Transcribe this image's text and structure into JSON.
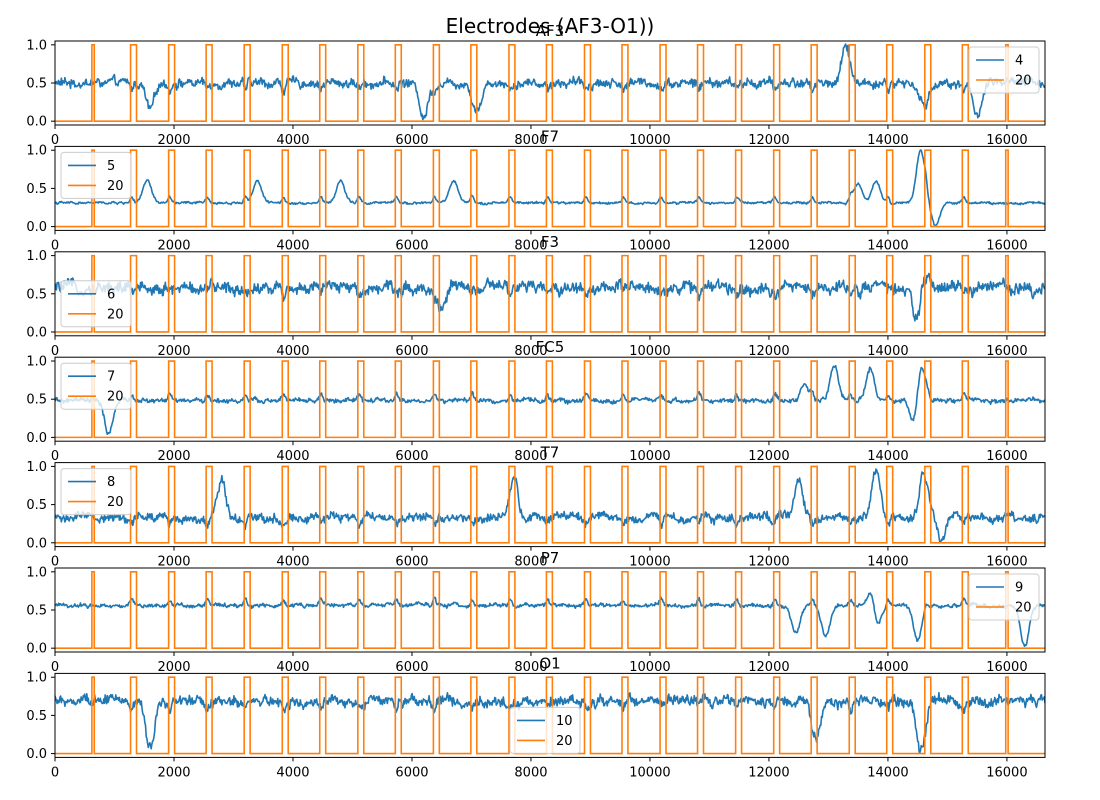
{
  "figure": {
    "suptitle": "Electrodes (AF3-O1))"
  },
  "colors": {
    "signal": "#1f77b4",
    "marker": "#ff7f0e"
  },
  "chart_data": [
    {
      "type": "line",
      "title": "AF3",
      "xlim": [
        0,
        16640
      ],
      "ylim": [
        -0.05,
        1.05
      ],
      "xticks": [
        0,
        2000,
        4000,
        6000,
        8000,
        10000,
        12000,
        14000,
        16000
      ],
      "yticks": [
        0.0,
        0.5,
        1.0
      ],
      "legend_loc": "upper-right",
      "series": [
        {
          "name": "4",
          "kind": "signal",
          "baseline": 0.5,
          "noise": 0.06,
          "spikes": [
            [
              1600,
              0.15
            ],
            [
              6200,
              0.05
            ],
            [
              7100,
              0.15
            ],
            [
              13300,
              1.0
            ],
            [
              14600,
              0.2
            ],
            [
              15500,
              0.05
            ]
          ]
        },
        {
          "name": "20",
          "kind": "marker"
        }
      ]
    },
    {
      "type": "line",
      "title": "F7",
      "xlim": [
        0,
        16640
      ],
      "ylim": [
        -0.05,
        1.05
      ],
      "xticks": [
        0,
        2000,
        4000,
        6000,
        8000,
        10000,
        12000,
        14000,
        16000
      ],
      "yticks": [
        0.0,
        0.5,
        1.0
      ],
      "legend_loc": "upper-left",
      "series": [
        {
          "name": "5",
          "kind": "signal",
          "baseline": 0.31,
          "noise": 0.015,
          "spikes": [
            [
              1550,
              0.6
            ],
            [
              3400,
              0.6
            ],
            [
              4800,
              0.6
            ],
            [
              6700,
              0.6
            ],
            [
              13500,
              0.55
            ],
            [
              13800,
              0.6
            ],
            [
              14550,
              1.0
            ],
            [
              14800,
              0.02
            ]
          ]
        },
        {
          "name": "20",
          "kind": "marker"
        }
      ]
    },
    {
      "type": "line",
      "title": "F3",
      "xlim": [
        0,
        16640
      ],
      "ylim": [
        -0.05,
        1.05
      ],
      "xticks": [
        0,
        2000,
        4000,
        6000,
        8000,
        10000,
        12000,
        14000,
        16000
      ],
      "yticks": [
        0.0,
        0.5,
        1.0
      ],
      "legend_loc": "center-left",
      "series": [
        {
          "name": "6",
          "kind": "signal",
          "baseline": 0.58,
          "noise": 0.08,
          "spikes": [
            [
              14500,
              0.02
            ],
            [
              14600,
              0.9
            ],
            [
              6500,
              0.3
            ]
          ]
        },
        {
          "name": "20",
          "kind": "marker"
        }
      ]
    },
    {
      "type": "line",
      "title": "FC5",
      "xlim": [
        0,
        16640
      ],
      "ylim": [
        -0.05,
        1.05
      ],
      "xticks": [
        0,
        2000,
        4000,
        6000,
        8000,
        10000,
        12000,
        14000,
        16000
      ],
      "yticks": [
        0.0,
        0.5,
        1.0
      ],
      "legend_loc": "upper-left",
      "series": [
        {
          "name": "7",
          "kind": "signal",
          "baseline": 0.48,
          "noise": 0.03,
          "spikes": [
            [
              900,
              0.05
            ],
            [
              12600,
              0.7
            ],
            [
              13100,
              0.95
            ],
            [
              13700,
              0.9
            ],
            [
              14550,
              1.0
            ],
            [
              14450,
              0.1
            ]
          ]
        },
        {
          "name": "20",
          "kind": "marker"
        }
      ]
    },
    {
      "type": "line",
      "title": "T7",
      "xlim": [
        0,
        16640
      ],
      "ylim": [
        -0.05,
        1.05
      ],
      "xticks": [
        0,
        2000,
        4000,
        6000,
        8000,
        10000,
        12000,
        14000,
        16000
      ],
      "yticks": [
        0.0,
        0.5,
        1.0
      ],
      "legend_loc": "upper-left",
      "series": [
        {
          "name": "8",
          "kind": "signal",
          "baseline": 0.33,
          "noise": 0.06,
          "spikes": [
            [
              2800,
              0.85
            ],
            [
              7700,
              0.9
            ],
            [
              12500,
              0.85
            ],
            [
              13800,
              0.95
            ],
            [
              14600,
              0.95
            ],
            [
              14900,
              0.02
            ]
          ]
        },
        {
          "name": "20",
          "kind": "marker"
        }
      ]
    },
    {
      "type": "line",
      "title": "P7",
      "xlim": [
        0,
        16640
      ],
      "ylim": [
        -0.05,
        1.05
      ],
      "xticks": [
        0,
        2000,
        4000,
        6000,
        8000,
        10000,
        12000,
        14000,
        16000
      ],
      "yticks": [
        0.0,
        0.5,
        1.0
      ],
      "legend_loc": "upper-right",
      "series": [
        {
          "name": "9",
          "kind": "signal",
          "baseline": 0.56,
          "noise": 0.025,
          "spikes": [
            [
              12450,
              0.2
            ],
            [
              12950,
              0.15
            ],
            [
              13750,
              1.0
            ],
            [
              13800,
              0.05
            ],
            [
              14500,
              0.1
            ],
            [
              16300,
              0.02
            ]
          ]
        },
        {
          "name": "20",
          "kind": "marker"
        }
      ]
    },
    {
      "type": "line",
      "title": "O1",
      "xlim": [
        0,
        16640
      ],
      "ylim": [
        -0.05,
        1.05
      ],
      "xticks": [
        0,
        2000,
        4000,
        6000,
        8000,
        10000,
        12000,
        14000,
        16000
      ],
      "yticks": [
        0.0,
        0.5,
        1.0
      ],
      "legend_loc": "lower-center",
      "series": [
        {
          "name": "10",
          "kind": "signal",
          "baseline": 0.68,
          "noise": 0.07,
          "spikes": [
            [
              1600,
              0.05
            ],
            [
              14550,
              0.02
            ],
            [
              12800,
              0.2
            ]
          ]
        },
        {
          "name": "20",
          "kind": "marker"
        }
      ]
    }
  ],
  "markers": {
    "thin_pulse_x": [
      640,
      16000
    ],
    "wide_pulses": [
      [
        1270,
        1370
      ],
      [
        1910,
        2010
      ],
      [
        2540,
        2640
      ],
      [
        3180,
        3280
      ],
      [
        3820,
        3920
      ],
      [
        4450,
        4550
      ],
      [
        5090,
        5190
      ],
      [
        5720,
        5820
      ],
      [
        6360,
        6460
      ],
      [
        6990,
        7090
      ],
      [
        7630,
        7730
      ],
      [
        8260,
        8360
      ],
      [
        8900,
        9000
      ],
      [
        9530,
        9630
      ],
      [
        10170,
        10270
      ],
      [
        10800,
        10900
      ],
      [
        11440,
        11540
      ],
      [
        12080,
        12180
      ],
      [
        12710,
        12810
      ],
      [
        13350,
        13450
      ],
      [
        13980,
        14080
      ],
      [
        14620,
        14720
      ],
      [
        15250,
        15350
      ]
    ]
  }
}
